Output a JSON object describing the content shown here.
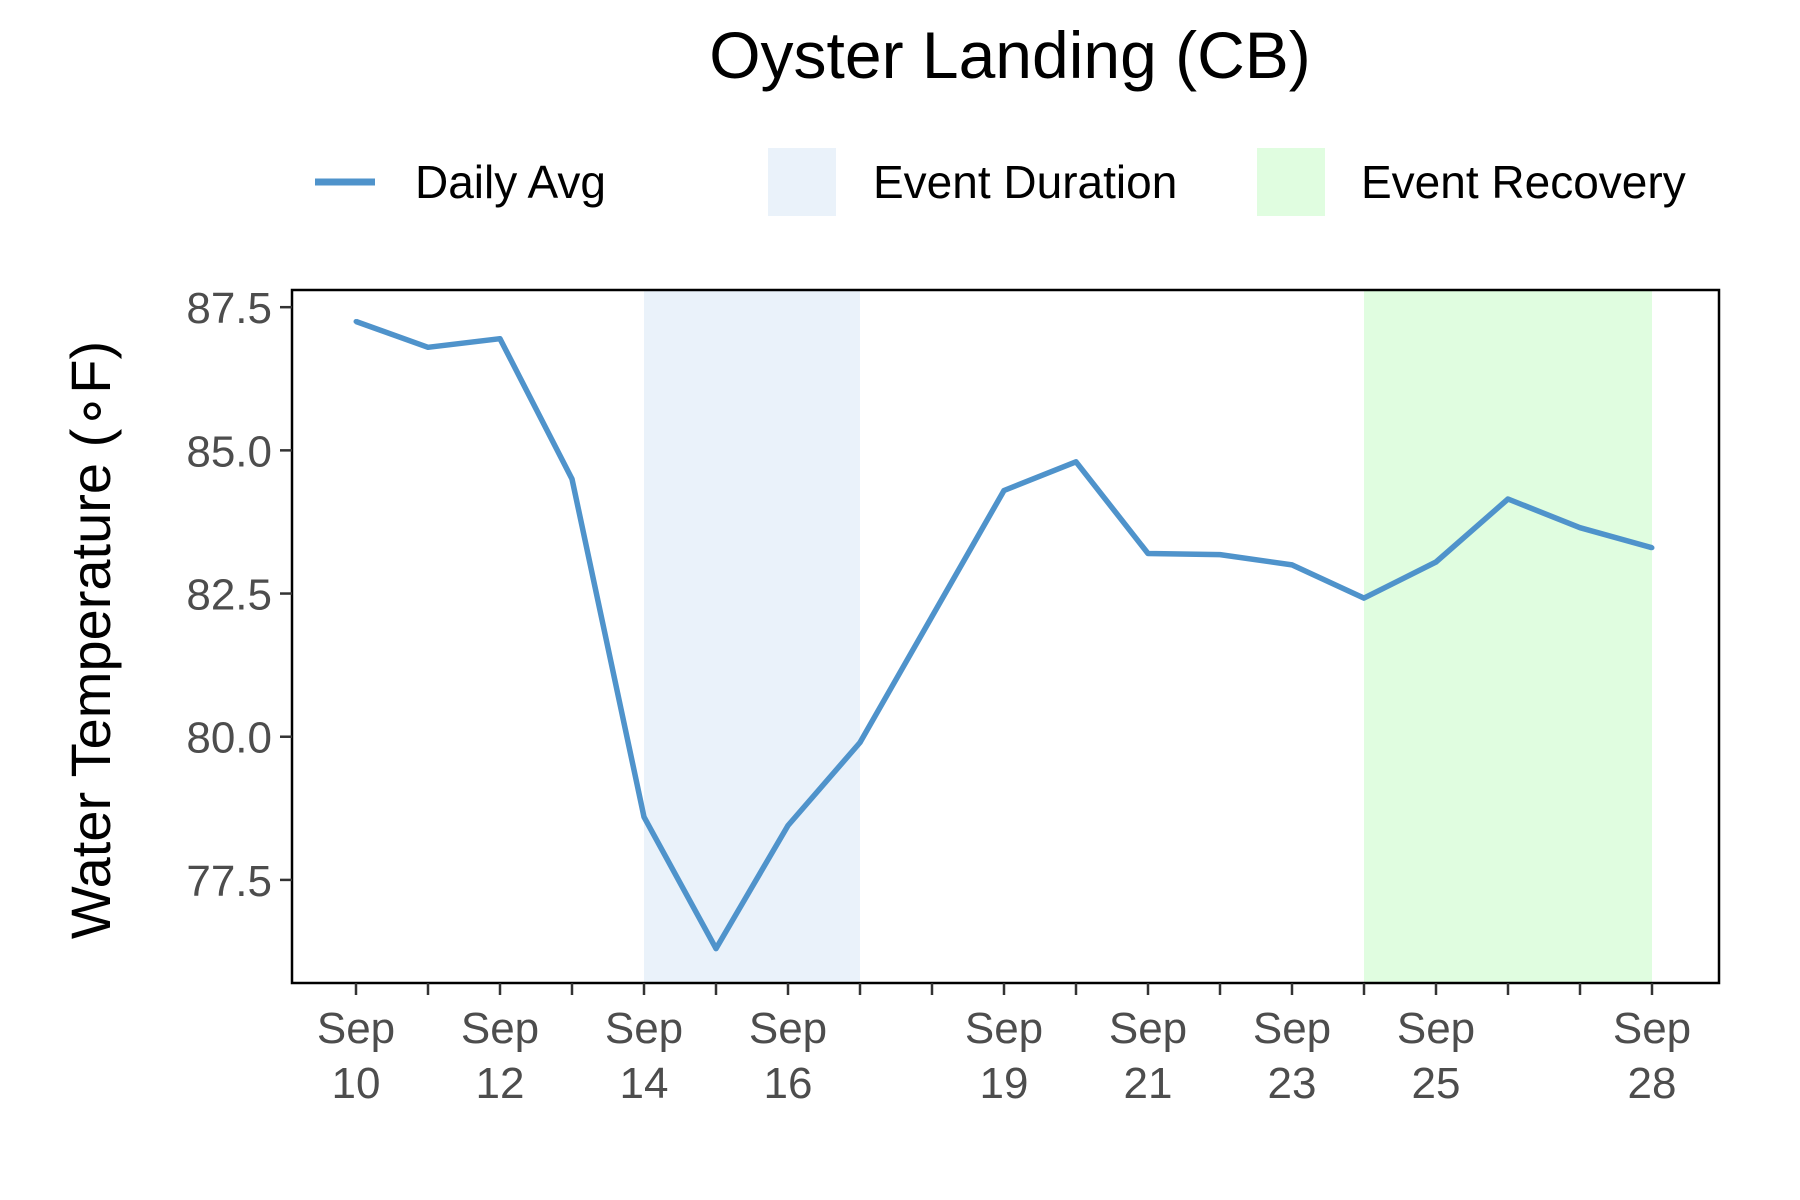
{
  "chart_data": {
    "type": "line",
    "title": "Oyster Landing (CB)",
    "ylabel": "Water Temperature (∘F)",
    "xlabel": "",
    "legend": {
      "placement": "top",
      "entries": [
        {
          "label": "Daily Avg",
          "kind": "line",
          "color": "#4f93cb"
        },
        {
          "label": "Event Duration",
          "kind": "fill",
          "color": "#eaf2fa"
        },
        {
          "label": "Event Recovery",
          "kind": "fill",
          "color": "#e0fde0"
        }
      ]
    },
    "ylim": [
      75.7,
      87.8
    ],
    "xlim": [
      "Sep 9",
      "Sep 28"
    ],
    "yticks": [
      77.5,
      80.0,
      82.5,
      85.0,
      87.5
    ],
    "ytick_labels": [
      "77.5",
      "80.0",
      "82.5",
      "85.0",
      "87.5"
    ],
    "xticks": [
      "Sep 10",
      "Sep 11",
      "Sep 12",
      "Sep 13",
      "Sep 14",
      "Sep 15",
      "Sep 16",
      "Sep 17",
      "Sep 18",
      "Sep 19",
      "Sep 20",
      "Sep 21",
      "Sep 22",
      "Sep 23",
      "Sep 24",
      "Sep 25",
      "Sep 26",
      "Sep 27",
      "Sep 28"
    ],
    "xtick_labels": [
      {
        "date": "Sep 10",
        "line1": "Sep",
        "line2": "10"
      },
      {
        "date": "Sep 12",
        "line1": "Sep",
        "line2": "12"
      },
      {
        "date": "Sep 14",
        "line1": "Sep",
        "line2": "14"
      },
      {
        "date": "Sep 16",
        "line1": "Sep",
        "line2": "16"
      },
      {
        "date": "Sep 19",
        "line1": "Sep",
        "line2": "19"
      },
      {
        "date": "Sep 21",
        "line1": "Sep",
        "line2": "21"
      },
      {
        "date": "Sep 23",
        "line1": "Sep",
        "line2": "23"
      },
      {
        "date": "Sep 25",
        "line1": "Sep",
        "line2": "25"
      },
      {
        "date": "Sep 28",
        "line1": "Sep",
        "line2": "28"
      }
    ],
    "series": [
      {
        "name": "Daily Avg",
        "color": "#4f93cb",
        "x": [
          "Sep 10",
          "Sep 11",
          "Sep 12",
          "Sep 13",
          "Sep 14",
          "Sep 15",
          "Sep 16",
          "Sep 17",
          "Sep 18",
          "Sep 19",
          "Sep 20",
          "Sep 21",
          "Sep 22",
          "Sep 23",
          "Sep 24",
          "Sep 25",
          "Sep 26",
          "Sep 27",
          "Sep 28"
        ],
        "values": [
          87.25,
          86.8,
          86.95,
          84.5,
          78.6,
          76.3,
          78.45,
          79.9,
          82.1,
          84.3,
          84.8,
          83.2,
          83.18,
          83.0,
          82.42,
          83.05,
          84.15,
          83.65,
          83.3
        ]
      }
    ],
    "bands": [
      {
        "name": "Event Duration",
        "start": "Sep 14",
        "end": "Sep 17",
        "color": "#eaf2fa"
      },
      {
        "name": "Event Recovery",
        "start": "Sep 24",
        "end": "Sep 28",
        "color": "#e0fde0"
      }
    ],
    "grid": false
  }
}
